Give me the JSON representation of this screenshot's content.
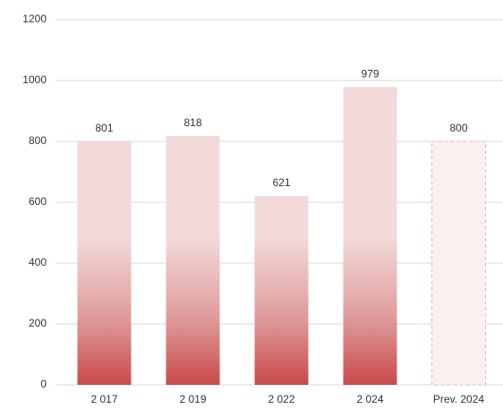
{
  "chart_data": {
    "type": "bar",
    "categories": [
      "2 017",
      "2 019",
      "2 022",
      "2 024",
      "Prev. 2024"
    ],
    "values": [
      801,
      818,
      621,
      979,
      800
    ],
    "forecast": [
      false,
      false,
      false,
      false,
      true
    ],
    "color": "#c94a4a",
    "ylim": [
      0,
      1200
    ],
    "yticks": [
      0,
      200,
      400,
      600,
      800,
      1000,
      1200
    ],
    "grid": true
  }
}
